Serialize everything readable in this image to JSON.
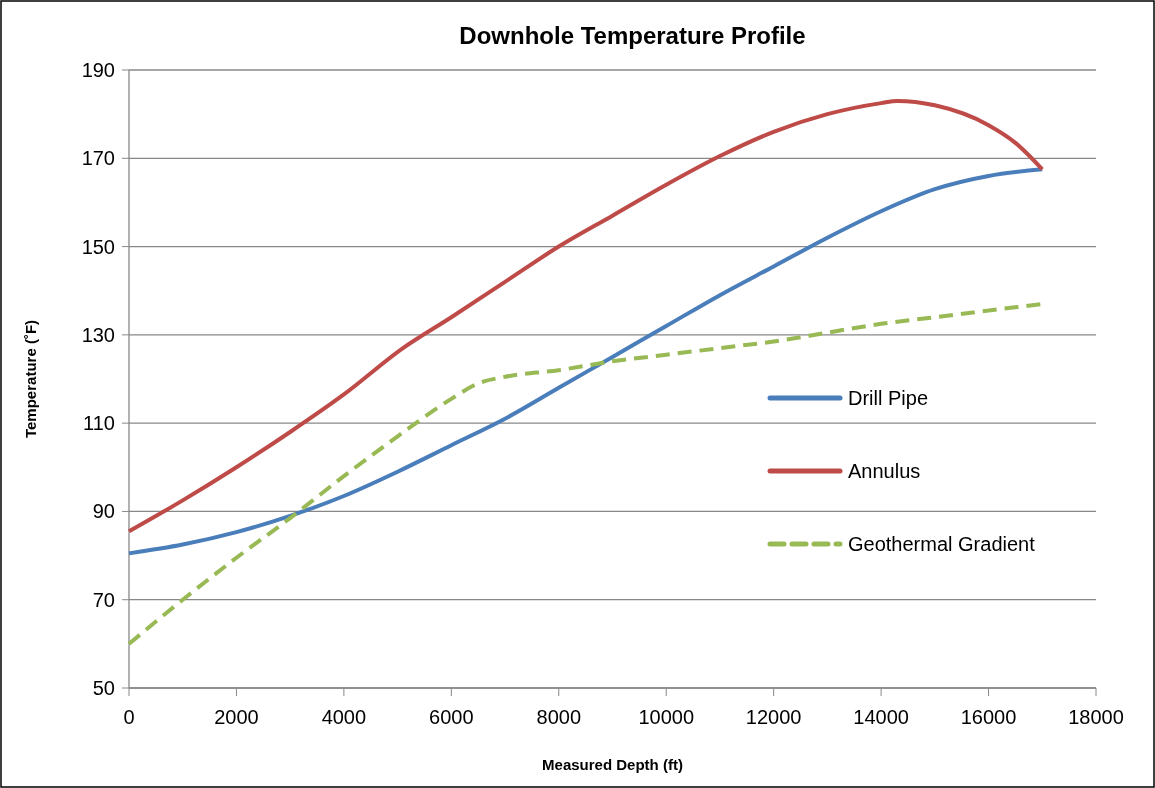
{
  "chart_data": {
    "type": "line",
    "title": "Downhole Temperature Profile",
    "xlabel": "Measured Depth (ft)",
    "ylabel": "Temperature (˚F)",
    "xlim": [
      0,
      18000
    ],
    "xticks": [
      0,
      2000,
      4000,
      6000,
      8000,
      10000,
      12000,
      14000,
      16000,
      18000
    ],
    "ylim": [
      50,
      190
    ],
    "yticks": [
      50,
      70,
      90,
      110,
      130,
      150,
      170,
      190
    ],
    "grid": "y",
    "legend": "right",
    "marker": "none",
    "x": [
      0,
      1000,
      2000,
      3000,
      4000,
      5000,
      6000,
      7000,
      8000,
      9000,
      10000,
      11000,
      12000,
      13000,
      14000,
      15000,
      16000,
      17000
    ],
    "series": [
      {
        "name": "Drill Pipe",
        "color": "#4a7ebb",
        "line_style": "solid",
        "values": [
          80.5,
          82.5,
          85.3,
          89,
          93.5,
          99,
          105,
          111,
          118,
          125,
          132,
          139,
          145.5,
          152,
          158,
          163,
          166,
          167.5
        ]
      },
      {
        "name": "Annulus",
        "color": "#be4b48",
        "line_style": "solid",
        "x": [
          0,
          1000,
          2000,
          3000,
          4000,
          5100,
          6000,
          7000,
          8000,
          9000,
          10000,
          11000,
          12000,
          13000,
          14000,
          14300,
          15000,
          16000,
          16500,
          17000
        ],
        "values": [
          85.5,
          92.5,
          100,
          108,
          116.5,
          127,
          134,
          142,
          150,
          157,
          164,
          170.5,
          176,
          180,
          182.5,
          183,
          182,
          177.5,
          173.5,
          167.5
        ]
      },
      {
        "name": "Geothermal Gradient",
        "color": "#98b954",
        "line_style": "dashed",
        "x": [
          0,
          1000,
          2000,
          3000,
          4000,
          5000,
          6000,
          6500,
          7000,
          8000,
          9000,
          10000,
          11000,
          12000,
          13000,
          14000,
          15000,
          16000,
          17000
        ],
        "values": [
          60,
          70,
          79.5,
          88.5,
          98,
          107,
          115.5,
          119,
          120.5,
          122,
          124,
          125.5,
          127,
          128.5,
          130.5,
          132.5,
          134,
          135.5,
          137
        ]
      }
    ]
  }
}
